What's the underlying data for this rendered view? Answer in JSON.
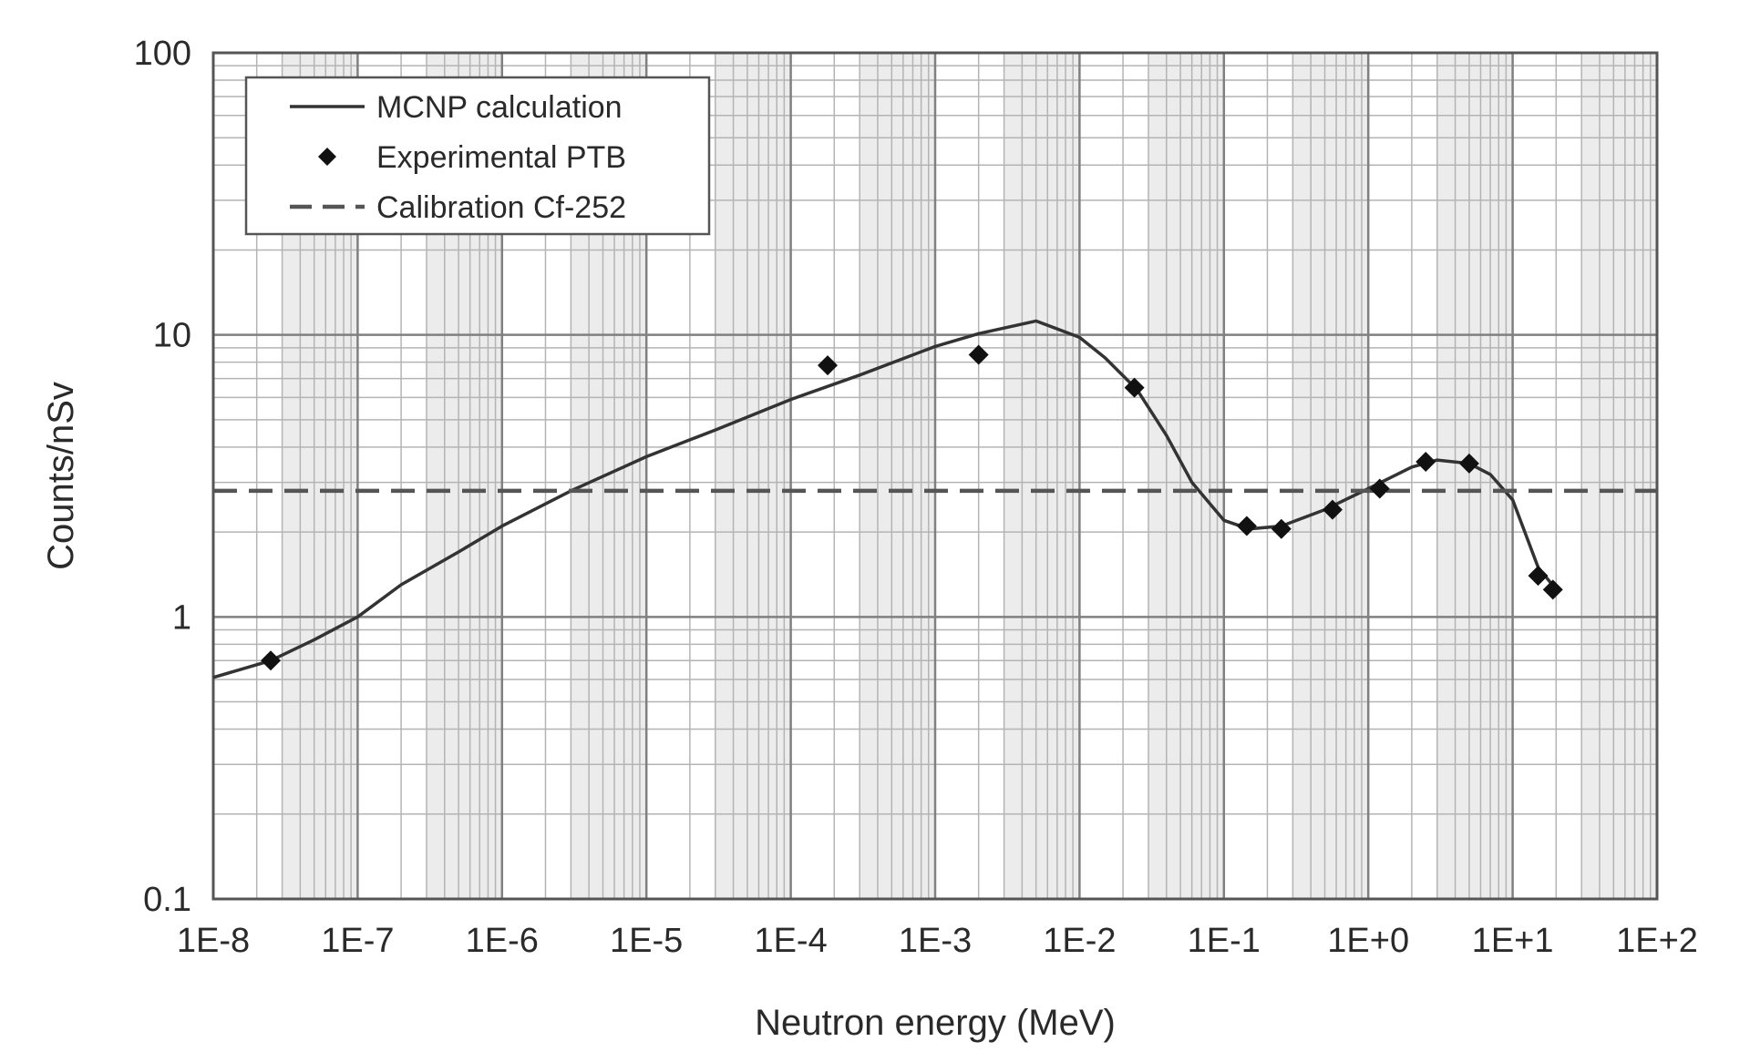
{
  "chart_data": {
    "type": "line",
    "xlabel": "Neutron energy (MeV)",
    "ylabel": "Counts/nSv",
    "x_scale": "log",
    "y_scale": "log",
    "xlim": [
      1e-08,
      100
    ],
    "ylim": [
      0.1,
      100
    ],
    "grid": true,
    "legend_position": "top-left",
    "x_tick_labels": [
      "1E-8",
      "1E-7",
      "1E-6",
      "1E-5",
      "1E-4",
      "1E-3",
      "1E-2",
      "1E-1",
      "1E+0",
      "1E+1",
      "1E+2"
    ],
    "y_tick_labels": [
      "0.1",
      "1",
      "10",
      "100"
    ],
    "series": [
      {
        "name": "MCNP calculation",
        "style": "solid",
        "color": "#333333",
        "x": [
          1e-08,
          2.5e-08,
          5e-08,
          1e-07,
          2e-07,
          5e-07,
          1e-06,
          3e-06,
          1e-05,
          3e-05,
          0.0001,
          0.0003,
          0.001,
          0.002,
          0.005,
          0.01,
          0.015,
          0.025,
          0.04,
          0.06,
          0.1,
          0.15,
          0.25,
          0.5,
          1,
          2,
          3,
          5,
          7,
          10.0,
          15.0,
          20.0
        ],
        "y": [
          0.61,
          0.7,
          0.83,
          1.0,
          1.3,
          1.7,
          2.1,
          2.8,
          3.7,
          4.6,
          5.9,
          7.2,
          9.1,
          10.1,
          11.2,
          9.8,
          8.3,
          6.4,
          4.4,
          3.0,
          2.2,
          2.05,
          2.1,
          2.4,
          2.85,
          3.4,
          3.6,
          3.5,
          3.2,
          2.6,
          1.5,
          1.25
        ]
      },
      {
        "name": "Experimental PTB",
        "style": "markers",
        "marker": "diamond",
        "color": "#111111",
        "x": [
          2.5e-08,
          0.00018,
          0.002,
          0.024,
          0.144,
          0.25,
          0.565,
          1.2,
          2.5,
          5.0,
          15.0,
          19.0
        ],
        "y": [
          0.7,
          7.8,
          8.5,
          6.5,
          2.1,
          2.05,
          2.4,
          2.85,
          3.55,
          3.5,
          1.4,
          1.25
        ]
      },
      {
        "name": "Calibration Cf-252",
        "style": "dashed",
        "color": "#555555",
        "x": [
          1e-08,
          100
        ],
        "y": [
          2.8,
          2.8
        ]
      }
    ]
  }
}
